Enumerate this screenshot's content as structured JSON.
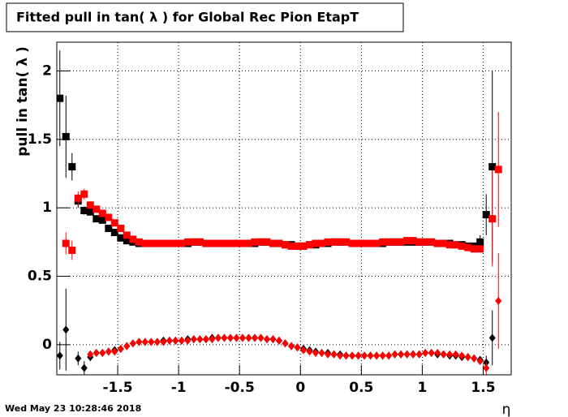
{
  "chart_data": {
    "type": "scatter",
    "title": "Fitted pull in tan( λ ) for Global Rec Pion EtapT",
    "x_label": "η",
    "y_label": "pull in tan( λ )",
    "timestamp": "Wed May 23 10:28:46 2018",
    "xlim": [
      -2.0,
      1.73
    ],
    "ylim": [
      -0.22,
      2.21
    ],
    "xticks": [
      -1.5,
      -1,
      -0.5,
      0,
      0.5,
      1,
      1.5
    ],
    "yticks": [
      0,
      0.5,
      1,
      1.5,
      2
    ],
    "grid": true,
    "x": [
      -1.975,
      -1.925,
      -1.875,
      -1.825,
      -1.775,
      -1.725,
      -1.675,
      -1.625,
      -1.575,
      -1.525,
      -1.475,
      -1.425,
      -1.375,
      -1.325,
      -1.275,
      -1.225,
      -1.175,
      -1.125,
      -1.075,
      -1.025,
      -0.975,
      -0.925,
      -0.875,
      -0.825,
      -0.775,
      -0.725,
      -0.675,
      -0.625,
      -0.575,
      -0.525,
      -0.475,
      -0.425,
      -0.375,
      -0.325,
      -0.275,
      -0.225,
      -0.175,
      -0.125,
      -0.075,
      -0.025,
      0.025,
      0.075,
      0.125,
      0.175,
      0.225,
      0.275,
      0.325,
      0.375,
      0.425,
      0.475,
      0.525,
      0.575,
      0.625,
      0.675,
      0.725,
      0.775,
      0.825,
      0.875,
      0.925,
      0.975,
      1.025,
      1.075,
      1.125,
      1.175,
      1.225,
      1.275,
      1.325,
      1.375,
      1.425,
      1.475,
      1.525,
      1.575,
      1.625
    ],
    "series": [
      {
        "color": "#000000",
        "marker": "square",
        "values": [
          1.8,
          1.52,
          1.3,
          1.05,
          0.98,
          0.97,
          0.92,
          0.91,
          0.85,
          0.82,
          0.78,
          0.76,
          0.75,
          0.74,
          0.74,
          0.74,
          0.74,
          0.74,
          0.74,
          0.74,
          0.74,
          0.74,
          0.75,
          0.75,
          0.74,
          0.74,
          0.74,
          0.74,
          0.74,
          0.74,
          0.74,
          0.74,
          0.74,
          0.75,
          0.75,
          0.74,
          0.74,
          0.73,
          0.73,
          0.72,
          0.72,
          0.73,
          0.73,
          0.74,
          0.74,
          0.75,
          0.75,
          0.75,
          0.74,
          0.74,
          0.74,
          0.74,
          0.74,
          0.74,
          0.75,
          0.75,
          0.75,
          0.75,
          0.75,
          0.75,
          0.75,
          0.75,
          0.74,
          0.74,
          0.74,
          0.73,
          0.73,
          0.72,
          0.72,
          0.75,
          0.95,
          1.3,
          null
        ],
        "errors": [
          0.35,
          0.3,
          0.1,
          0.05,
          0.03,
          null,
          null,
          null,
          null,
          null,
          null,
          null,
          null,
          null,
          null,
          null,
          null,
          null,
          null,
          null,
          null,
          null,
          null,
          null,
          null,
          null,
          null,
          null,
          null,
          null,
          null,
          null,
          null,
          null,
          null,
          null,
          null,
          null,
          null,
          null,
          null,
          null,
          null,
          null,
          null,
          null,
          null,
          null,
          null,
          null,
          null,
          null,
          null,
          null,
          null,
          null,
          null,
          null,
          null,
          null,
          null,
          null,
          null,
          null,
          null,
          null,
          null,
          null,
          null,
          0.05,
          0.15,
          0.7,
          null
        ]
      },
      {
        "color": "#ff0000",
        "marker": "square",
        "values": [
          null,
          0.74,
          0.69,
          1.07,
          1.1,
          1.02,
          0.99,
          0.96,
          0.93,
          0.89,
          0.85,
          0.8,
          0.77,
          0.75,
          0.74,
          0.74,
          0.74,
          0.74,
          0.74,
          0.74,
          0.74,
          0.75,
          0.75,
          0.75,
          0.74,
          0.74,
          0.74,
          0.74,
          0.74,
          0.74,
          0.74,
          0.74,
          0.75,
          0.75,
          0.75,
          0.74,
          0.74,
          0.73,
          0.72,
          0.72,
          0.72,
          0.73,
          0.74,
          0.74,
          0.75,
          0.75,
          0.75,
          0.75,
          0.74,
          0.74,
          0.74,
          0.74,
          0.74,
          0.75,
          0.75,
          0.75,
          0.75,
          0.76,
          0.76,
          0.75,
          0.75,
          0.75,
          0.74,
          0.74,
          0.73,
          0.73,
          0.72,
          0.71,
          0.7,
          0.7,
          null,
          0.92,
          1.28
        ],
        "errors": [
          null,
          0.08,
          0.07,
          0.05,
          0.04,
          null,
          null,
          null,
          null,
          null,
          null,
          null,
          null,
          null,
          null,
          null,
          null,
          null,
          null,
          null,
          null,
          null,
          null,
          null,
          null,
          null,
          null,
          null,
          null,
          null,
          null,
          null,
          null,
          null,
          null,
          null,
          null,
          null,
          null,
          null,
          null,
          null,
          null,
          null,
          null,
          null,
          null,
          null,
          null,
          null,
          null,
          null,
          null,
          null,
          null,
          null,
          null,
          null,
          null,
          null,
          null,
          null,
          null,
          null,
          null,
          null,
          null,
          null,
          null,
          null,
          null,
          0.35,
          0.42
        ]
      },
      {
        "color": "#000000",
        "marker": "diamond",
        "values": [
          -0.08,
          0.11,
          null,
          -0.1,
          -0.17,
          -0.09,
          -0.06,
          -0.06,
          -0.05,
          -0.04,
          -0.03,
          -0.01,
          0.01,
          0.02,
          0.02,
          0.02,
          0.02,
          0.03,
          0.03,
          0.03,
          0.03,
          0.04,
          0.04,
          0.04,
          0.04,
          0.05,
          0.05,
          0.05,
          0.05,
          0.05,
          0.05,
          0.05,
          0.05,
          0.05,
          0.04,
          0.04,
          0.03,
          0.01,
          -0.01,
          -0.02,
          -0.03,
          -0.04,
          -0.05,
          -0.06,
          -0.06,
          -0.07,
          -0.07,
          -0.08,
          -0.08,
          -0.08,
          -0.08,
          -0.08,
          -0.08,
          -0.08,
          -0.08,
          -0.07,
          -0.07,
          -0.07,
          -0.07,
          -0.07,
          -0.06,
          -0.06,
          -0.07,
          -0.07,
          -0.08,
          -0.08,
          -0.09,
          -0.09,
          -0.1,
          -0.11,
          -0.13,
          0.05,
          null
        ],
        "errors": [
          0.1,
          0.3,
          null,
          0.05,
          0.05,
          0.03,
          null,
          null,
          null,
          null,
          null,
          null,
          null,
          null,
          null,
          null,
          null,
          null,
          null,
          null,
          null,
          null,
          null,
          null,
          null,
          null,
          null,
          null,
          null,
          null,
          null,
          null,
          null,
          null,
          null,
          null,
          null,
          null,
          null,
          null,
          null,
          null,
          null,
          null,
          null,
          null,
          null,
          null,
          null,
          null,
          null,
          null,
          null,
          null,
          null,
          null,
          null,
          null,
          null,
          null,
          null,
          null,
          null,
          null,
          null,
          null,
          null,
          null,
          null,
          null,
          0.05,
          0.2,
          null
        ]
      },
      {
        "color": "#ff0000",
        "marker": "diamond",
        "values": [
          null,
          null,
          null,
          null,
          null,
          -0.07,
          -0.06,
          -0.06,
          -0.05,
          -0.05,
          -0.03,
          -0.01,
          0.01,
          0.02,
          0.02,
          0.02,
          0.02,
          0.02,
          0.03,
          0.03,
          0.03,
          0.03,
          0.04,
          0.04,
          0.04,
          0.04,
          0.05,
          0.05,
          0.05,
          0.05,
          0.05,
          0.05,
          0.05,
          0.05,
          0.04,
          0.04,
          0.03,
          0.01,
          -0.01,
          -0.02,
          -0.04,
          -0.05,
          -0.06,
          -0.06,
          -0.07,
          -0.07,
          -0.08,
          -0.08,
          -0.08,
          -0.08,
          -0.08,
          -0.08,
          -0.08,
          -0.08,
          -0.08,
          -0.07,
          -0.07,
          -0.07,
          -0.07,
          -0.07,
          -0.06,
          -0.06,
          -0.06,
          -0.07,
          -0.07,
          -0.07,
          -0.08,
          -0.09,
          -0.1,
          -0.12,
          -0.17,
          null,
          0.32
        ],
        "errors": [
          null,
          null,
          null,
          null,
          null,
          null,
          null,
          null,
          null,
          null,
          null,
          null,
          null,
          null,
          null,
          null,
          null,
          null,
          null,
          null,
          null,
          null,
          null,
          null,
          null,
          null,
          null,
          null,
          null,
          null,
          null,
          null,
          null,
          null,
          null,
          null,
          null,
          null,
          null,
          null,
          null,
          null,
          null,
          null,
          null,
          null,
          null,
          null,
          null,
          null,
          null,
          null,
          null,
          null,
          null,
          null,
          null,
          null,
          null,
          null,
          null,
          null,
          null,
          null,
          null,
          null,
          null,
          null,
          null,
          null,
          0.05,
          null,
          0.35
        ]
      }
    ]
  }
}
